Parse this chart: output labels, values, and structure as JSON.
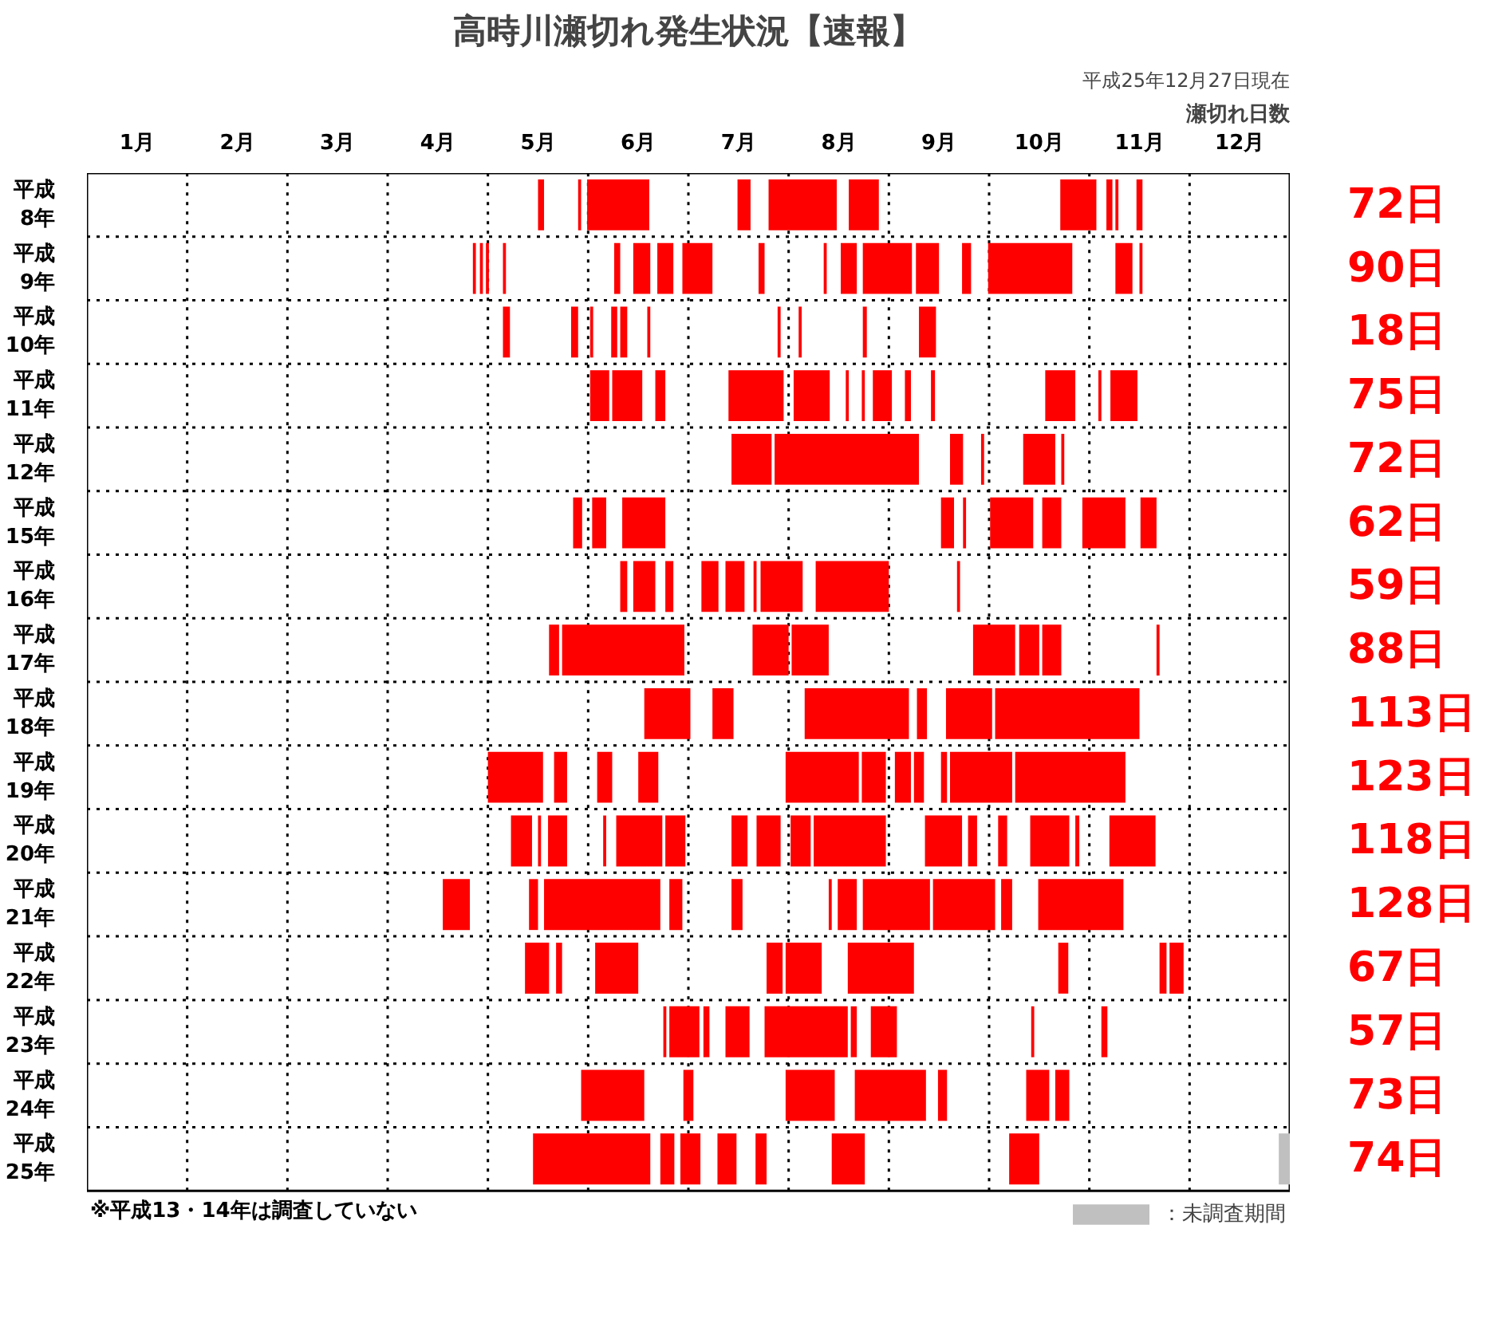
{
  "chart_data": {
    "type": "bar",
    "orientation": "horizontal",
    "title": "高時川瀬切れ発生状況【速報】",
    "subtitle": "平成25年12月27日現在",
    "annotations": [
      "瀬切れ日数",
      "※平成13・14年は調査していない",
      "72日",
      "90日",
      "18日",
      "75日",
      "72日",
      "62日",
      "59日",
      "88日",
      "113日",
      "123日",
      "118日",
      "128日",
      "67日",
      "57日",
      "73日",
      "74日"
    ],
    "categories": [
      "平成\n8年",
      "平成\n9年",
      "平成\n10年",
      "平成\n11年",
      "平成\n12年",
      "平成\n15年",
      "平成\n16年",
      "平成\n17年",
      "平成\n18年",
      "平成\n19年",
      "平成\n20年",
      "平成\n21年",
      "平成\n22年",
      "平成\n23年",
      "平成\n24年",
      "平成\n25年"
    ],
    "xlim": [
      0,
      12
    ],
    "xticks": [
      {
        "value": 0.5,
        "label": "1月"
      },
      {
        "value": 1.5,
        "label": "2月"
      },
      {
        "value": 2.5,
        "label": "3月"
      },
      {
        "value": 3.5,
        "label": "4月"
      },
      {
        "value": 4.5,
        "label": "5月"
      },
      {
        "value": 5.5,
        "label": "6月"
      },
      {
        "value": 6.5,
        "label": "7月"
      },
      {
        "value": 7.5,
        "label": "8月"
      },
      {
        "value": 8.5,
        "label": "9月"
      },
      {
        "value": 9.5,
        "label": "10月"
      },
      {
        "value": 10.5,
        "label": "11月"
      },
      {
        "value": 11.5,
        "label": "12月"
      }
    ],
    "grid": true,
    "ref_lines": [
      {
        "axis": "x",
        "value": 1,
        "line_style": "dotted",
        "color": "#000000"
      },
      {
        "axis": "x",
        "value": 2,
        "line_style": "dotted",
        "color": "#000000"
      },
      {
        "axis": "x",
        "value": 3,
        "line_style": "dotted",
        "color": "#000000"
      },
      {
        "axis": "x",
        "value": 4,
        "line_style": "dotted",
        "color": "#000000"
      },
      {
        "axis": "x",
        "value": 5,
        "line_style": "dotted",
        "color": "#000000"
      },
      {
        "axis": "x",
        "value": 6,
        "line_style": "dotted",
        "color": "#000000"
      },
      {
        "axis": "x",
        "value": 7,
        "line_style": "dotted",
        "color": "#000000"
      },
      {
        "axis": "x",
        "value": 8,
        "line_style": "dotted",
        "color": "#000000"
      },
      {
        "axis": "x",
        "value": 9,
        "line_style": "dotted",
        "color": "#000000"
      },
      {
        "axis": "x",
        "value": 10,
        "line_style": "dotted",
        "color": "#000000"
      },
      {
        "axis": "x",
        "value": 11,
        "line_style": "dotted",
        "color": "#000000"
      }
    ],
    "legend": "bottom right",
    "series": [
      {
        "color": "#ff0000",
        "base": [
          4.5,
          3.85,
          4.15,
          5.02,
          6.43,
          4.85,
          5.32,
          4.61,
          5.56,
          4.0,
          4.23,
          3.55,
          4.37,
          5.75,
          4.93,
          4.45
        ],
        "values": [
          0.06,
          0.03,
          0.07,
          0.19,
          0.4,
          0.09,
          0.07,
          0.1,
          0.46,
          0.55,
          0.21,
          0.27,
          0.24,
          0.03,
          0.63,
          1.17
        ]
      },
      {
        "color": "#ff0000",
        "base": [
          4.9,
          3.92,
          4.83,
          5.24,
          6.86,
          5.04,
          5.45,
          4.74,
          6.24,
          4.66,
          4.5,
          4.41,
          4.68,
          5.81,
          5.95,
          5.72
        ],
        "values": [
          0.03,
          0.03,
          0.07,
          0.3,
          1.44,
          0.14,
          0.22,
          1.22,
          0.21,
          0.13,
          0.03,
          0.09,
          0.06,
          0.3,
          0.1,
          0.14
        ]
      },
      {
        "color": "#ff0000",
        "base": [
          4.99,
          3.98,
          5.02,
          5.67,
          8.61,
          5.34,
          5.77,
          6.64,
          7.16,
          5.09,
          4.6,
          4.56,
          5.07,
          6.15,
          6.97,
          5.92
        ],
        "values": [
          0.62,
          0.03,
          0.03,
          0.1,
          0.13,
          0.43,
          0.08,
          0.36,
          1.04,
          0.15,
          0.19,
          1.16,
          0.43,
          0.06,
          0.49,
          0.2
        ]
      },
      {
        "color": "#ff0000",
        "base": [
          6.49,
          4.15,
          5.23,
          6.4,
          8.92,
          8.52,
          6.13,
          7.03,
          8.28,
          5.5,
          5.15,
          5.81,
          6.78,
          6.37,
          7.66,
          6.29
        ],
        "values": [
          0.13,
          0.03,
          0.06,
          0.55,
          0.03,
          0.13,
          0.17,
          0.37,
          0.1,
          0.2,
          0.03,
          0.13,
          0.16,
          0.24,
          0.71,
          0.19
        ]
      },
      {
        "color": "#ff0000",
        "base": [
          6.8,
          5.26,
          5.32,
          7.05,
          9.34,
          8.74,
          6.37,
          8.84,
          8.57,
          6.97,
          5.28,
          6.43,
          6.97,
          6.76,
          8.49,
          6.67
        ],
        "values": [
          0.68,
          0.06,
          0.07,
          0.36,
          0.32,
          0.03,
          0.19,
          0.42,
          0.46,
          0.73,
          0.46,
          0.11,
          0.36,
          0.83,
          0.09,
          0.11
        ]
      },
      {
        "color": "#ff0000",
        "base": [
          7.6,
          5.45,
          5.59,
          7.57,
          9.72,
          9.01,
          6.65,
          9.3,
          9.06,
          7.73,
          5.77,
          7.4,
          7.59,
          7.62,
          9.37,
          7.43
        ],
        "values": [
          0.3,
          0.17,
          0.03,
          0.03,
          0.03,
          0.43,
          0.03,
          0.2,
          1.44,
          0.24,
          0.2,
          0.03,
          0.66,
          0.06,
          0.23,
          0.33
        ]
      },
      {
        "color": "#ff0000",
        "base": [
          9.71,
          5.69,
          6.89,
          7.73,
          null,
          9.53,
          6.72,
          9.53,
          null,
          8.06,
          6.43,
          7.49,
          9.69,
          7.82,
          9.66,
          9.2
        ],
        "values": [
          0.36,
          0.16,
          0.03,
          0.03,
          null,
          0.19,
          0.42,
          0.19,
          null,
          0.16,
          0.16,
          0.19,
          0.1,
          0.26,
          0.14,
          0.3
        ]
      },
      {
        "color": "#ff0000",
        "base": [
          10.17,
          5.94,
          7.1,
          7.84,
          null,
          9.93,
          7.27,
          10.67,
          null,
          8.25,
          6.68,
          7.74,
          10.7,
          9.42,
          null,
          null
        ],
        "values": [
          0.06,
          0.3,
          0.03,
          0.19,
          null,
          0.43,
          0.73,
          0.03,
          null,
          0.1,
          0.24,
          0.67,
          0.07,
          0.03,
          null,
          null
        ]
      },
      {
        "color": "#ff0000",
        "base": [
          10.26,
          6.7,
          7.74,
          8.16,
          null,
          10.51,
          8.68,
          null,
          null,
          8.52,
          7.02,
          8.44,
          10.8,
          10.12,
          null,
          null
        ],
        "values": [
          0.03,
          0.06,
          0.04,
          0.06,
          null,
          0.16,
          0.03,
          null,
          null,
          0.06,
          0.2,
          0.62,
          0.14,
          0.06,
          null,
          null
        ]
      },
      {
        "color": "#ff0000",
        "base": [
          10.47,
          7.35,
          8.3,
          8.42,
          null,
          null,
          null,
          null,
          null,
          8.61,
          7.25,
          9.12,
          null,
          null,
          null,
          null
        ],
        "values": [
          0.06,
          0.03,
          0.17,
          0.04,
          null,
          null,
          null,
          null,
          null,
          0.62,
          0.72,
          0.11,
          null,
          null,
          null,
          null
        ]
      },
      {
        "color": "#ff0000",
        "base": [
          null,
          7.52,
          null,
          9.56,
          null,
          null,
          null,
          null,
          null,
          9.26,
          8.36,
          9.49,
          null,
          null,
          null,
          null
        ],
        "values": [
          null,
          0.16,
          null,
          0.3,
          null,
          null,
          null,
          null,
          null,
          1.1,
          0.37,
          0.85,
          null,
          null,
          null,
          null
        ]
      },
      {
        "color": "#ff0000",
        "base": [
          null,
          7.74,
          null,
          10.09,
          null,
          null,
          null,
          null,
          null,
          null,
          8.79,
          null,
          null,
          null,
          null,
          null
        ],
        "values": [
          null,
          0.49,
          null,
          0.03,
          null,
          null,
          null,
          null,
          null,
          null,
          0.09,
          null,
          null,
          null,
          null,
          null
        ]
      },
      {
        "color": "#ff0000",
        "base": [
          null,
          8.27,
          null,
          10.21,
          null,
          null,
          null,
          null,
          null,
          null,
          9.09,
          null,
          null,
          null,
          null,
          null
        ],
        "values": [
          null,
          0.23,
          null,
          0.27,
          null,
          null,
          null,
          null,
          null,
          null,
          0.09,
          null,
          null,
          null,
          null,
          null
        ]
      },
      {
        "color": "#ff0000",
        "base": [
          null,
          8.73,
          null,
          null,
          null,
          null,
          null,
          null,
          null,
          null,
          9.41,
          null,
          null,
          null,
          null,
          null
        ],
        "values": [
          null,
          0.09,
          null,
          null,
          null,
          null,
          null,
          null,
          null,
          null,
          0.39,
          null,
          null,
          null,
          null,
          null
        ]
      },
      {
        "color": "#ff0000",
        "base": [
          null,
          8.99,
          null,
          null,
          null,
          null,
          null,
          null,
          null,
          null,
          9.86,
          null,
          null,
          null,
          null,
          null
        ],
        "values": [
          null,
          0.84,
          null,
          null,
          null,
          null,
          null,
          null,
          null,
          null,
          0.04,
          null,
          null,
          null,
          null,
          null
        ]
      },
      {
        "color": "#ff0000",
        "base": [
          null,
          10.26,
          null,
          null,
          null,
          null,
          null,
          null,
          null,
          null,
          10.2,
          null,
          null,
          null,
          null,
          null
        ],
        "values": [
          null,
          0.17,
          null,
          null,
          null,
          null,
          null,
          null,
          null,
          null,
          0.46,
          null,
          null,
          null,
          null,
          null
        ]
      },
      {
        "color": "#ff0000",
        "base": [
          null,
          10.5,
          null,
          null,
          null,
          null,
          null,
          null,
          null,
          null,
          null,
          null,
          null,
          null,
          null,
          null
        ],
        "values": [
          null,
          0.03,
          null,
          null,
          null,
          null,
          null,
          null,
          null,
          null,
          null,
          null,
          null,
          null,
          null,
          null
        ]
      },
      {
        "name": "：未調査期間",
        "color": "#c0c0c0",
        "base": [
          null,
          null,
          null,
          null,
          null,
          null,
          null,
          null,
          null,
          null,
          null,
          null,
          null,
          null,
          null,
          11.89
        ],
        "values": [
          null,
          null,
          null,
          null,
          null,
          null,
          null,
          null,
          null,
          null,
          null,
          null,
          null,
          null,
          null,
          0.11
        ]
      }
    ]
  }
}
